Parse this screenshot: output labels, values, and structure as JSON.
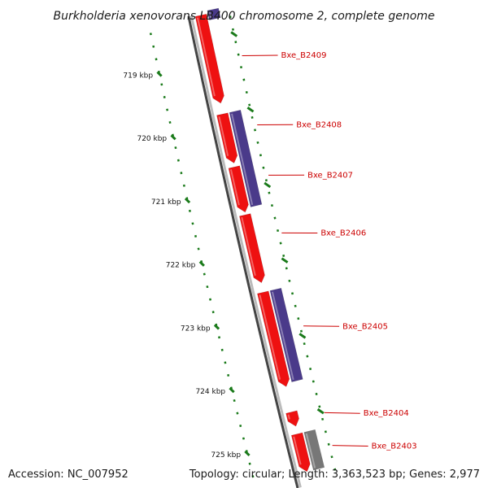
{
  "title": "Burkholderia xenovorans LB400 chromosome 2, complete genome",
  "accession": "Accession: NC_007952",
  "summary": "Topology: circular; Length: 3,363,523 bp; Genes: 2,977",
  "colors": {
    "forward_gene": "#ee1111",
    "reverse_gene": "#4a3a8a",
    "other_gene": "#777777",
    "tick": "#1a7a1a",
    "label": "#cc0000",
    "backbone": "#888888"
  },
  "ticks": [
    {
      "label": "719 kbp",
      "position_kbp": 719
    },
    {
      "label": "720 kbp",
      "position_kbp": 720
    },
    {
      "label": "721 kbp",
      "position_kbp": 721
    },
    {
      "label": "722 kbp",
      "position_kbp": 722
    },
    {
      "label": "723 kbp",
      "position_kbp": 723
    },
    {
      "label": "724 kbp",
      "position_kbp": 724
    },
    {
      "label": "725 kbp",
      "position_kbp": 725
    }
  ],
  "genes": [
    {
      "name": "",
      "strand": "reverse",
      "start_kbp": 718.2,
      "end_kbp": 718.35
    },
    {
      "name": "Bxe_B2409",
      "strand": "forward",
      "start_kbp": 718.25,
      "end_kbp": 719.65
    },
    {
      "name": "Bxe_B2408",
      "strand": "forward",
      "start_kbp": 719.82,
      "end_kbp": 720.6
    },
    {
      "name": "",
      "strand": "reverse",
      "start_kbp": 719.82,
      "end_kbp": 721.32
    },
    {
      "name": "Bxe_B2407",
      "strand": "forward",
      "start_kbp": 720.66,
      "end_kbp": 721.38
    },
    {
      "name": "Bxe_B2406",
      "strand": "forward",
      "start_kbp": 721.42,
      "end_kbp": 722.5
    },
    {
      "name": "Bxe_B2405",
      "strand": "forward",
      "start_kbp": 722.65,
      "end_kbp": 724.15
    },
    {
      "name": "",
      "strand": "reverse",
      "start_kbp": 722.65,
      "end_kbp": 724.1
    },
    {
      "name": "Bxe_B2404",
      "strand": "forward",
      "start_kbp": 724.55,
      "end_kbp": 724.78
    },
    {
      "name": "Bxe_B2403",
      "strand": "forward",
      "start_kbp": 724.9,
      "end_kbp": 725.5
    },
    {
      "name": "",
      "strand": "other",
      "start_kbp": 724.9,
      "end_kbp": 725.5
    }
  ],
  "gene_labels": [
    {
      "name": "Bxe_B2409",
      "anchor_kbp": 719.0
    },
    {
      "name": "Bxe_B2408",
      "anchor_kbp": 720.1
    },
    {
      "name": "Bxe_B2407",
      "anchor_kbp": 720.9
    },
    {
      "name": "Bxe_B2406",
      "anchor_kbp": 721.82
    },
    {
      "name": "Bxe_B2405",
      "anchor_kbp": 723.3
    },
    {
      "name": "Bxe_B2404",
      "anchor_kbp": 724.68
    },
    {
      "name": "Bxe_B2403",
      "anchor_kbp": 725.2
    }
  ]
}
